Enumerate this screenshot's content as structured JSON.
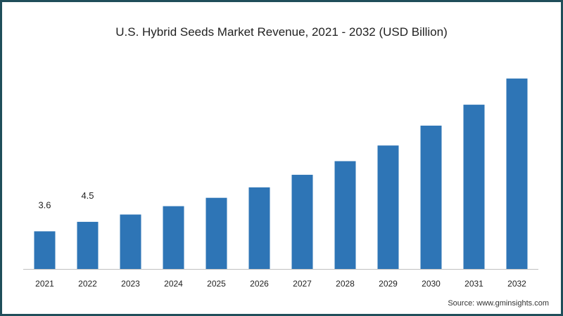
{
  "chart_data": {
    "type": "bar",
    "title": "U.S. Hybrid Seeds Market Revenue, 2021 - 2032 (USD Billion)",
    "xlabel": "",
    "ylabel": "",
    "categories": [
      "2021",
      "2022",
      "2023",
      "2024",
      "2025",
      "2026",
      "2027",
      "2028",
      "2029",
      "2030",
      "2031",
      "2032"
    ],
    "values": [
      3.6,
      4.5,
      5.2,
      6.0,
      6.8,
      7.8,
      9.0,
      10.3,
      11.8,
      13.7,
      15.7,
      18.2
    ],
    "value_labels": [
      "3.6",
      "4.5",
      "",
      "",
      "",
      "",
      "",
      "",
      "",
      "",
      "",
      ""
    ],
    "ylim": [
      0,
      20.2
    ],
    "grid": false,
    "bar_color": "#2e75b6"
  },
  "source": "Source: www.gminsights.com",
  "colors": {
    "border": "#1f4e5a",
    "axis": "#bfbfbf",
    "text": "#222222"
  }
}
